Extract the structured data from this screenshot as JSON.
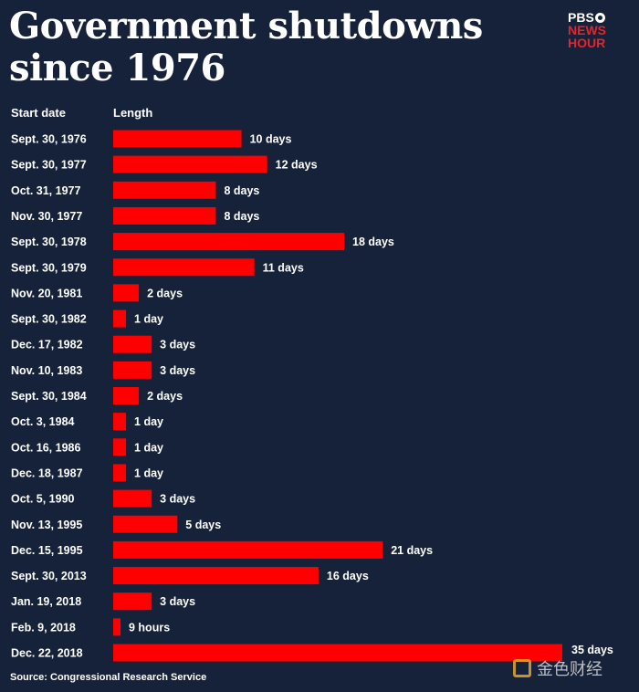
{
  "header": {
    "title_line1": "Government shutdowns",
    "title_line2": "since 1976",
    "logo_top": "PBS",
    "logo_line2": "NEWS",
    "logo_line3": "HOUR"
  },
  "chart_data": {
    "type": "bar",
    "orientation": "horizontal",
    "title": "Government shutdowns since 1976",
    "column_headers": {
      "category": "Start date",
      "value": "Length"
    },
    "unit": "days",
    "xlim": [
      0,
      35
    ],
    "categories": [
      "Sept. 30, 1976",
      "Sept. 30, 1977",
      "Oct. 31, 1977",
      "Nov. 30, 1977",
      "Sept. 30, 1978",
      "Sept. 30, 1979",
      "Nov. 20, 1981",
      "Sept. 30, 1982",
      "Dec. 17, 1982",
      "Nov. 10, 1983",
      "Sept. 30, 1984",
      "Oct. 3, 1984",
      "Oct. 16, 1986",
      "Dec. 18, 1987",
      "Oct. 5, 1990",
      "Nov. 13, 1995",
      "Dec. 15, 1995",
      "Sept. 30, 2013",
      "Jan. 19, 2018",
      "Feb. 9, 2018",
      "Dec. 22, 2018"
    ],
    "values": [
      10,
      12,
      8,
      8,
      18,
      11,
      2,
      1,
      3,
      3,
      2,
      1,
      1,
      1,
      3,
      5,
      21,
      16,
      3,
      0.375,
      35
    ],
    "value_labels": [
      "10 days",
      "12 days",
      "8 days",
      "8 days",
      "18 days",
      "11 days",
      "2 days",
      "1 day",
      "3 days",
      "3 days",
      "2 days",
      "1 day",
      "1 day",
      "1 day",
      "3 days",
      "5 days",
      "21 days",
      "16 days",
      "3 days",
      "9 hours",
      "35 days"
    ],
    "bar_color": "#ff0000",
    "source": "Source: Congressional Research Service"
  },
  "watermark": "金色财经",
  "colors": {
    "background": "#16213a",
    "bar": "#ff0000",
    "text": "#ffffff",
    "logo_accent": "#e3262c"
  }
}
